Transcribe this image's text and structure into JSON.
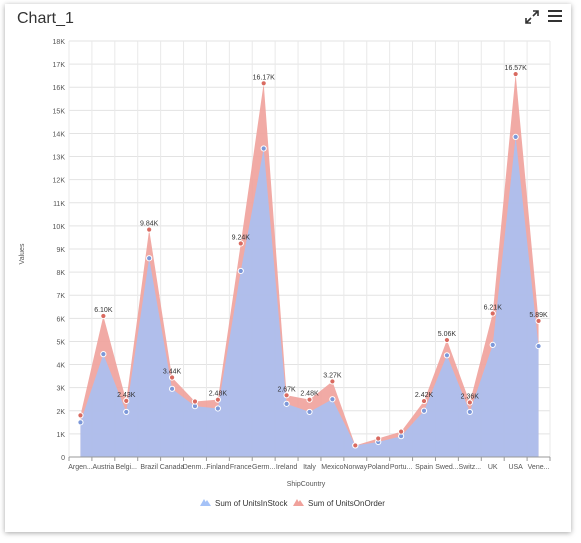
{
  "window": {
    "title": "Chart_1"
  },
  "toolbar": {
    "expand_icon": "expand-icon",
    "menu_icon": "hamburger-menu-icon"
  },
  "chart_data": {
    "type": "area",
    "title": "",
    "xlabel": "ShipCountry",
    "ylabel": "Values",
    "ylim": [
      0,
      18000
    ],
    "yticks": [
      "0",
      "1K",
      "2K",
      "3K",
      "4K",
      "5K",
      "6K",
      "7K",
      "8K",
      "9K",
      "10K",
      "11K",
      "12K",
      "13K",
      "14K",
      "15K",
      "16K",
      "17K",
      "18K"
    ],
    "categories": [
      "Argen...",
      "Austria",
      "Belgi...",
      "Brazil",
      "Canada",
      "Denm...",
      "Finland",
      "France",
      "Germ...",
      "Ireland",
      "Italy",
      "Mexico",
      "Norway",
      "Poland",
      "Portu...",
      "Spain",
      "Swed...",
      "Switz...",
      "UK",
      "USA",
      "Vene..."
    ],
    "grid": true,
    "legend_position": "bottom",
    "series": [
      {
        "name": "Sum of UnitsInStock",
        "color": "#a5c2f7",
        "values": [
          1500,
          4450,
          1950,
          8600,
          2950,
          2200,
          2100,
          8050,
          13350,
          2300,
          1950,
          2500,
          500,
          650,
          900,
          2000,
          4400,
          1950,
          4850,
          13850,
          4800
        ]
      },
      {
        "name": "Sum of UnitsOnOrder",
        "color": "#f0a19b",
        "values": [
          1800,
          6100,
          2430,
          9840,
          3440,
          2400,
          2480,
          9240,
          16170,
          2670,
          2480,
          3270,
          500,
          800,
          1100,
          2420,
          5060,
          2360,
          6210,
          16570,
          5890
        ]
      }
    ],
    "data_labels": [
      "",
      "6.10K",
      "2.43K",
      "9.84K",
      "3.44K",
      "",
      "2.48K",
      "9.24K",
      "16.17K",
      "2.67K",
      "2.48K",
      "3.27K",
      "",
      "",
      "",
      "2.42K",
      "5.06K",
      "2.36K",
      "6.21K",
      "16.57K",
      "5.89K"
    ]
  }
}
